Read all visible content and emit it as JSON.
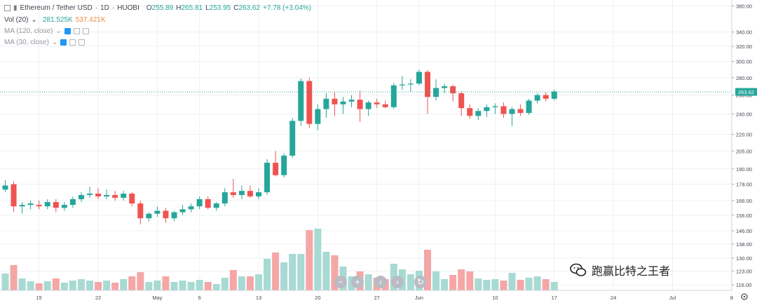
{
  "header": {
    "symbol": "Ethereum / Tether USD",
    "interval": "1D",
    "exchange": "HUOBI",
    "ohlc": {
      "o_label": "O",
      "o_value": "255.89",
      "h_label": "H",
      "h_value": "265.81",
      "l_label": "L",
      "l_value": "253.95",
      "c_label": "C",
      "c_value": "263.62",
      "change": "+7.78 (+3.04%)"
    }
  },
  "indicators": [
    {
      "label": "Vol (20)",
      "chevron": "⌄",
      "value1": "281.525K",
      "value2": "537.421K"
    },
    {
      "label": "MA (120, close)",
      "chevron": "⌄"
    },
    {
      "label": "MA (30, close)",
      "chevron": "⌄"
    }
  ],
  "nav_buttons": [
    {
      "name": "zoom-out",
      "glyph": "−"
    },
    {
      "name": "zoom-in",
      "glyph": "+"
    },
    {
      "name": "scroll-left",
      "glyph": "‹"
    },
    {
      "name": "scroll-right",
      "glyph": "›"
    },
    {
      "name": "reset",
      "glyph": "↻"
    }
  ],
  "watermark": "跑赢比特之王者",
  "colors": {
    "up": "#26a69a",
    "down": "#ef5350",
    "up_vol": "#a7dad3",
    "down_vol": "#f4a7a6",
    "last_price_bg": "#26a69a",
    "price_line": "#26a69a",
    "grid": "#eef0f3"
  },
  "chart_data": {
    "type": "candlestick",
    "y_scale": "log",
    "ylim": [
      114,
      385
    ],
    "yticks": [
      116,
      123,
      130,
      138,
      146,
      156,
      166,
      178,
      190,
      205,
      220,
      240,
      260,
      280,
      300,
      320,
      340,
      380
    ],
    "ytick_labels": [
      "116.00",
      "123.00",
      "130.00",
      "138.00",
      "146.00",
      "156.00",
      "166.00",
      "178.00",
      "190.00",
      "205.00",
      "220.00",
      "240.00",
      "260.00",
      "280.00",
      "300.00",
      "320.00",
      "340.00",
      "380.00"
    ],
    "last_price": 263.62,
    "last_price_label": "263.62",
    "xticks": [
      {
        "label": "15",
        "day": 4
      },
      {
        "label": "22",
        "day": 11
      },
      {
        "label": "May",
        "day": 18
      },
      {
        "label": "6",
        "day": 23
      },
      {
        "label": "13",
        "day": 30
      },
      {
        "label": "20",
        "day": 37
      },
      {
        "label": "27",
        "day": 44
      },
      {
        "label": "Jun",
        "day": 49
      },
      {
        "label": "10",
        "day": 58
      },
      {
        "label": "17",
        "day": 65
      },
      {
        "label": "24",
        "day": 72
      },
      {
        "label": "Jul",
        "day": 79
      },
      {
        "label": "8",
        "day": 86
      }
    ],
    "candles": [
      {
        "o": 174,
        "h": 181,
        "l": 172,
        "c": 177,
        "v": 0.24
      },
      {
        "o": 178,
        "h": 180,
        "l": 158,
        "c": 162,
        "v": 0.36
      },
      {
        "o": 162,
        "h": 165,
        "l": 157,
        "c": 163,
        "v": 0.17
      },
      {
        "o": 163,
        "h": 166,
        "l": 160,
        "c": 164,
        "v": 0.13
      },
      {
        "o": 163,
        "h": 166,
        "l": 160,
        "c": 162,
        "v": 0.1
      },
      {
        "o": 162,
        "h": 167,
        "l": 160,
        "c": 165,
        "v": 0.13
      },
      {
        "o": 165,
        "h": 167,
        "l": 158,
        "c": 161,
        "v": 0.17
      },
      {
        "o": 161,
        "h": 165,
        "l": 159,
        "c": 163,
        "v": 0.11
      },
      {
        "o": 163,
        "h": 169,
        "l": 161,
        "c": 167,
        "v": 0.14
      },
      {
        "o": 167,
        "h": 172,
        "l": 165,
        "c": 170,
        "v": 0.16
      },
      {
        "o": 170,
        "h": 176,
        "l": 168,
        "c": 171,
        "v": 0.14
      },
      {
        "o": 171,
        "h": 175,
        "l": 167,
        "c": 169,
        "v": 0.12
      },
      {
        "o": 169,
        "h": 174,
        "l": 167,
        "c": 170,
        "v": 0.14
      },
      {
        "o": 170,
        "h": 173,
        "l": 166,
        "c": 168,
        "v": 0.11
      },
      {
        "o": 168,
        "h": 173,
        "l": 166,
        "c": 171,
        "v": 0.16
      },
      {
        "o": 171,
        "h": 172,
        "l": 162,
        "c": 164,
        "v": 0.2
      },
      {
        "o": 164,
        "h": 166,
        "l": 150,
        "c": 154,
        "v": 0.26
      },
      {
        "o": 154,
        "h": 158,
        "l": 152,
        "c": 157,
        "v": 0.12
      },
      {
        "o": 157,
        "h": 162,
        "l": 155,
        "c": 159,
        "v": 0.14
      },
      {
        "o": 159,
        "h": 161,
        "l": 151,
        "c": 154,
        "v": 0.2
      },
      {
        "o": 154,
        "h": 159,
        "l": 152,
        "c": 158,
        "v": 0.12
      },
      {
        "o": 158,
        "h": 163,
        "l": 156,
        "c": 160,
        "v": 0.14
      },
      {
        "o": 160,
        "h": 164,
        "l": 158,
        "c": 162,
        "v": 0.12
      },
      {
        "o": 162,
        "h": 169,
        "l": 160,
        "c": 167,
        "v": 0.15
      },
      {
        "o": 167,
        "h": 169,
        "l": 160,
        "c": 161,
        "v": 0.12
      },
      {
        "o": 161,
        "h": 165,
        "l": 159,
        "c": 164,
        "v": 0.09
      },
      {
        "o": 164,
        "h": 175,
        "l": 162,
        "c": 172,
        "v": 0.18
      },
      {
        "o": 172,
        "h": 182,
        "l": 168,
        "c": 170,
        "v": 0.29
      },
      {
        "o": 170,
        "h": 177,
        "l": 167,
        "c": 173,
        "v": 0.2
      },
      {
        "o": 173,
        "h": 177,
        "l": 168,
        "c": 169,
        "v": 0.2
      },
      {
        "o": 169,
        "h": 175,
        "l": 167,
        "c": 172,
        "v": 0.23
      },
      {
        "o": 172,
        "h": 198,
        "l": 170,
        "c": 195,
        "v": 0.45
      },
      {
        "o": 195,
        "h": 205,
        "l": 184,
        "c": 185,
        "v": 0.54
      },
      {
        "o": 185,
        "h": 203,
        "l": 183,
        "c": 201,
        "v": 0.4
      },
      {
        "o": 201,
        "h": 236,
        "l": 199,
        "c": 233,
        "v": 0.52
      },
      {
        "o": 233,
        "h": 279,
        "l": 228,
        "c": 276,
        "v": 0.52
      },
      {
        "o": 276,
        "h": 280,
        "l": 226,
        "c": 230,
        "v": 0.86
      },
      {
        "o": 230,
        "h": 250,
        "l": 224,
        "c": 245,
        "v": 0.88
      },
      {
        "o": 245,
        "h": 262,
        "l": 236,
        "c": 256,
        "v": 0.55
      },
      {
        "o": 256,
        "h": 264,
        "l": 238,
        "c": 250,
        "v": 0.5
      },
      {
        "o": 250,
        "h": 258,
        "l": 240,
        "c": 253,
        "v": 0.34
      },
      {
        "o": 253,
        "h": 260,
        "l": 247,
        "c": 255,
        "v": 0.2
      },
      {
        "o": 255,
        "h": 265,
        "l": 232,
        "c": 245,
        "v": 0.27
      },
      {
        "o": 245,
        "h": 254,
        "l": 238,
        "c": 252,
        "v": 0.23
      },
      {
        "o": 252,
        "h": 256,
        "l": 246,
        "c": 250,
        "v": 0.18
      },
      {
        "o": 250,
        "h": 254,
        "l": 246,
        "c": 247,
        "v": 0.16
      },
      {
        "o": 247,
        "h": 274,
        "l": 245,
        "c": 271,
        "v": 0.38
      },
      {
        "o": 271,
        "h": 282,
        "l": 266,
        "c": 272,
        "v": 0.3
      },
      {
        "o": 272,
        "h": 278,
        "l": 264,
        "c": 273,
        "v": 0.23
      },
      {
        "o": 273,
        "h": 290,
        "l": 271,
        "c": 287,
        "v": 0.28
      },
      {
        "o": 287,
        "h": 289,
        "l": 240,
        "c": 258,
        "v": 0.58
      },
      {
        "o": 258,
        "h": 278,
        "l": 254,
        "c": 268,
        "v": 0.27
      },
      {
        "o": 268,
        "h": 273,
        "l": 262,
        "c": 270,
        "v": 0.16
      },
      {
        "o": 270,
        "h": 272,
        "l": 253,
        "c": 262,
        "v": 0.22
      },
      {
        "o": 262,
        "h": 264,
        "l": 238,
        "c": 246,
        "v": 0.3
      },
      {
        "o": 246,
        "h": 250,
        "l": 235,
        "c": 238,
        "v": 0.27
      },
      {
        "o": 238,
        "h": 246,
        "l": 234,
        "c": 243,
        "v": 0.17
      },
      {
        "o": 243,
        "h": 250,
        "l": 237,
        "c": 247,
        "v": 0.15
      },
      {
        "o": 247,
        "h": 251,
        "l": 240,
        "c": 248,
        "v": 0.16
      },
      {
        "o": 248,
        "h": 252,
        "l": 236,
        "c": 240,
        "v": 0.14
      },
      {
        "o": 240,
        "h": 247,
        "l": 228,
        "c": 245,
        "v": 0.25
      },
      {
        "o": 245,
        "h": 250,
        "l": 238,
        "c": 241,
        "v": 0.15
      },
      {
        "o": 241,
        "h": 256,
        "l": 239,
        "c": 254,
        "v": 0.18
      },
      {
        "o": 254,
        "h": 262,
        "l": 251,
        "c": 260,
        "v": 0.2
      },
      {
        "o": 260,
        "h": 263,
        "l": 253,
        "c": 256,
        "v": 0.16
      },
      {
        "o": 256,
        "h": 266,
        "l": 254,
        "c": 264,
        "v": 0.12
      }
    ]
  }
}
